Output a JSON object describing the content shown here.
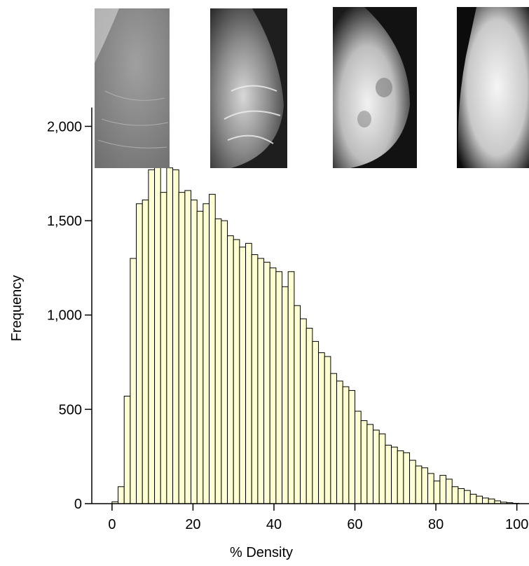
{
  "chart_data": {
    "type": "bar",
    "subtype": "histogram",
    "xlabel": "% Density",
    "ylabel": "Frequency",
    "xlim": [
      -5,
      103
    ],
    "ylim": [
      0,
      2150
    ],
    "x_ticks": [
      0,
      20,
      40,
      60,
      80,
      100
    ],
    "x_tick_labels": [
      "0",
      "20",
      "40",
      "60",
      "80",
      "100"
    ],
    "y_ticks": [
      0,
      500,
      1000,
      1500,
      2000
    ],
    "y_tick_labels": [
      "0",
      "500",
      "1,000",
      "1,500",
      "2,000"
    ],
    "bin_width": 1.5,
    "bin_start": 0,
    "values": [
      10,
      90,
      570,
      1300,
      1590,
      1610,
      1770,
      1850,
      1650,
      1780,
      1770,
      1650,
      1660,
      1610,
      1550,
      1590,
      1640,
      1510,
      1500,
      1420,
      1400,
      1360,
      1380,
      1320,
      1300,
      1280,
      1250,
      1230,
      1150,
      1230,
      1050,
      980,
      930,
      860,
      800,
      780,
      690,
      650,
      620,
      600,
      490,
      440,
      420,
      390,
      370,
      310,
      300,
      280,
      270,
      230,
      200,
      190,
      160,
      120,
      150,
      130,
      90,
      80,
      70,
      50,
      40,
      30,
      25,
      15,
      8,
      5,
      2
    ],
    "bar_color": "#ffffd4",
    "edge_color": "#000000",
    "grid": false,
    "left_spine_top": 2100,
    "inset_images": [
      {
        "name": "mammogram-fatty",
        "brightness": "low"
      },
      {
        "name": "mammogram-scattered",
        "brightness": "medium"
      },
      {
        "name": "mammogram-heterogeneous",
        "brightness": "medium-high"
      },
      {
        "name": "mammogram-dense",
        "brightness": "high"
      }
    ]
  }
}
